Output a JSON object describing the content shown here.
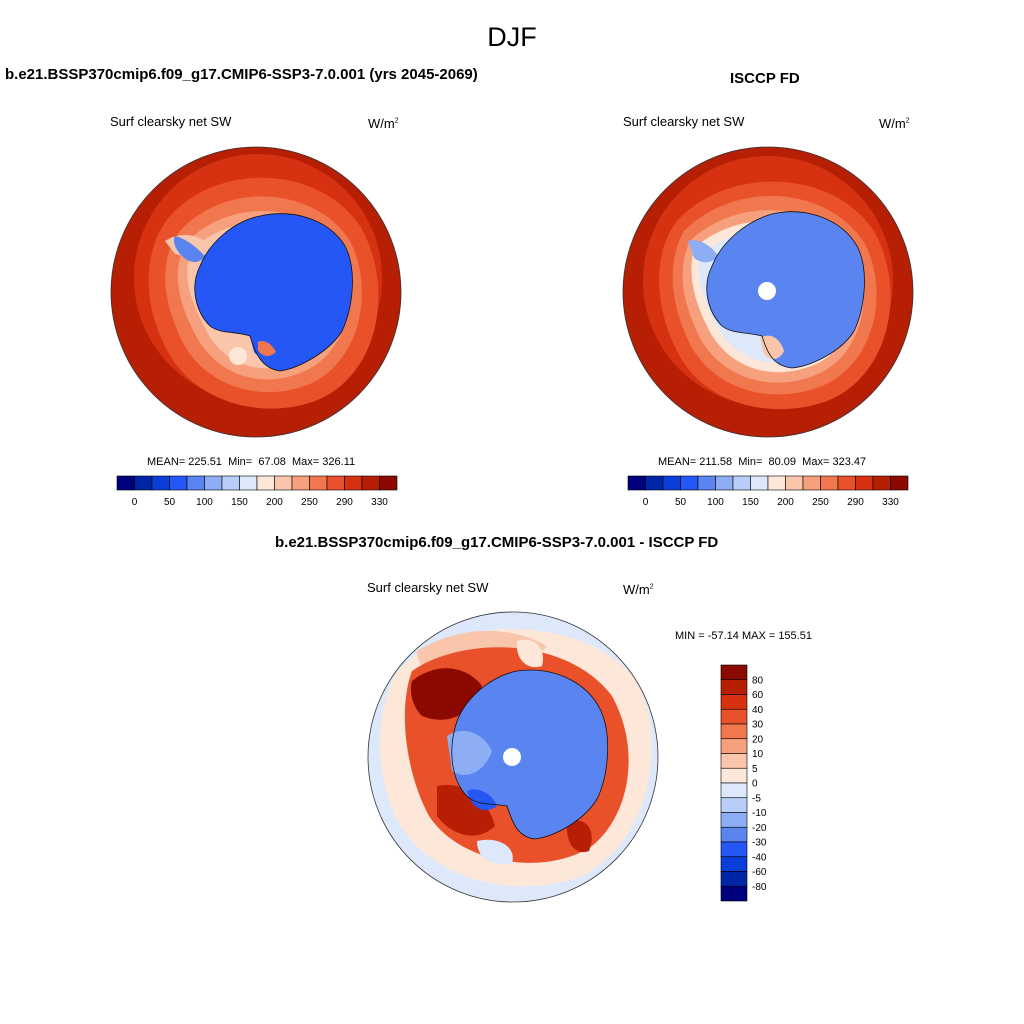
{
  "season": "DJF",
  "left_panel": {
    "title": "b.e21.BSSP370cmip6.f09_g17.CMIP6-SSP3-7.0.001 (yrs 2045-2069)",
    "variable": "Surf clearsky net SW",
    "units_base": "W/m",
    "units_exp": "2",
    "stats": {
      "mean_label": "MEAN=",
      "mean": "225.51",
      "min_label": "Min=",
      "min": "67.08",
      "max_label": "Max=",
      "max": "326.11"
    }
  },
  "right_panel": {
    "title": "ISCCP FD",
    "variable": "Surf clearsky net SW",
    "units_base": "W/m",
    "units_exp": "2",
    "stats": {
      "mean_label": "MEAN=",
      "mean": "211.58",
      "min_label": "Min=",
      "min": "80.09",
      "max_label": "Max=",
      "max": "323.47"
    }
  },
  "diff_panel": {
    "title": "b.e21.BSSP370cmip6.f09_g17.CMIP6-SSP3-7.0.001 - ISCCP FD",
    "variable": "Surf clearsky net SW",
    "units_base": "W/m",
    "units_exp": "2",
    "minmax": "MIN = -57.14 MAX = 155.51"
  },
  "chart_data": [
    {
      "type": "heatmap",
      "panel": "model",
      "projection": "south polar stereographic",
      "colorbar": {
        "orientation": "horizontal",
        "tick_labels": [
          "0",
          "50",
          "100",
          "150",
          "200",
          "250",
          "290",
          "330"
        ],
        "colors": [
          "#00007f",
          "#0026a8",
          "#0a3ed8",
          "#2457f5",
          "#5a84f0",
          "#8daef4",
          "#b8cdf7",
          "#dde8fb",
          "#fde7d9",
          "#f9c5ab",
          "#f6a07d",
          "#f1774f",
          "#e9512b",
          "#d63212",
          "#b71f05",
          "#8c0900"
        ]
      }
    },
    {
      "type": "heatmap",
      "panel": "observations",
      "projection": "south polar stereographic",
      "colorbar": {
        "orientation": "horizontal",
        "tick_labels": [
          "0",
          "50",
          "100",
          "150",
          "200",
          "250",
          "290",
          "330"
        ],
        "colors": [
          "#00007f",
          "#0026a8",
          "#0a3ed8",
          "#2457f5",
          "#5a84f0",
          "#8daef4",
          "#b8cdf7",
          "#dde8fb",
          "#fde7d9",
          "#f9c5ab",
          "#f6a07d",
          "#f1774f",
          "#e9512b",
          "#d63212",
          "#b71f05",
          "#8c0900"
        ]
      }
    },
    {
      "type": "heatmap",
      "panel": "difference",
      "projection": "south polar stereographic",
      "colorbar": {
        "orientation": "vertical",
        "tick_labels": [
          "80",
          "60",
          "40",
          "30",
          "20",
          "10",
          "5",
          "0",
          "-5",
          "-10",
          "-20",
          "-30",
          "-40",
          "-60",
          "-80"
        ],
        "colors": [
          "#8c0900",
          "#b71f05",
          "#d63212",
          "#e9512b",
          "#f1774f",
          "#f6a07d",
          "#f9c5ab",
          "#fde7d9",
          "#dde8fb",
          "#b8cdf7",
          "#8daef4",
          "#5a84f0",
          "#2457f5",
          "#0a3ed8",
          "#0026a8",
          "#00007f"
        ]
      }
    }
  ]
}
